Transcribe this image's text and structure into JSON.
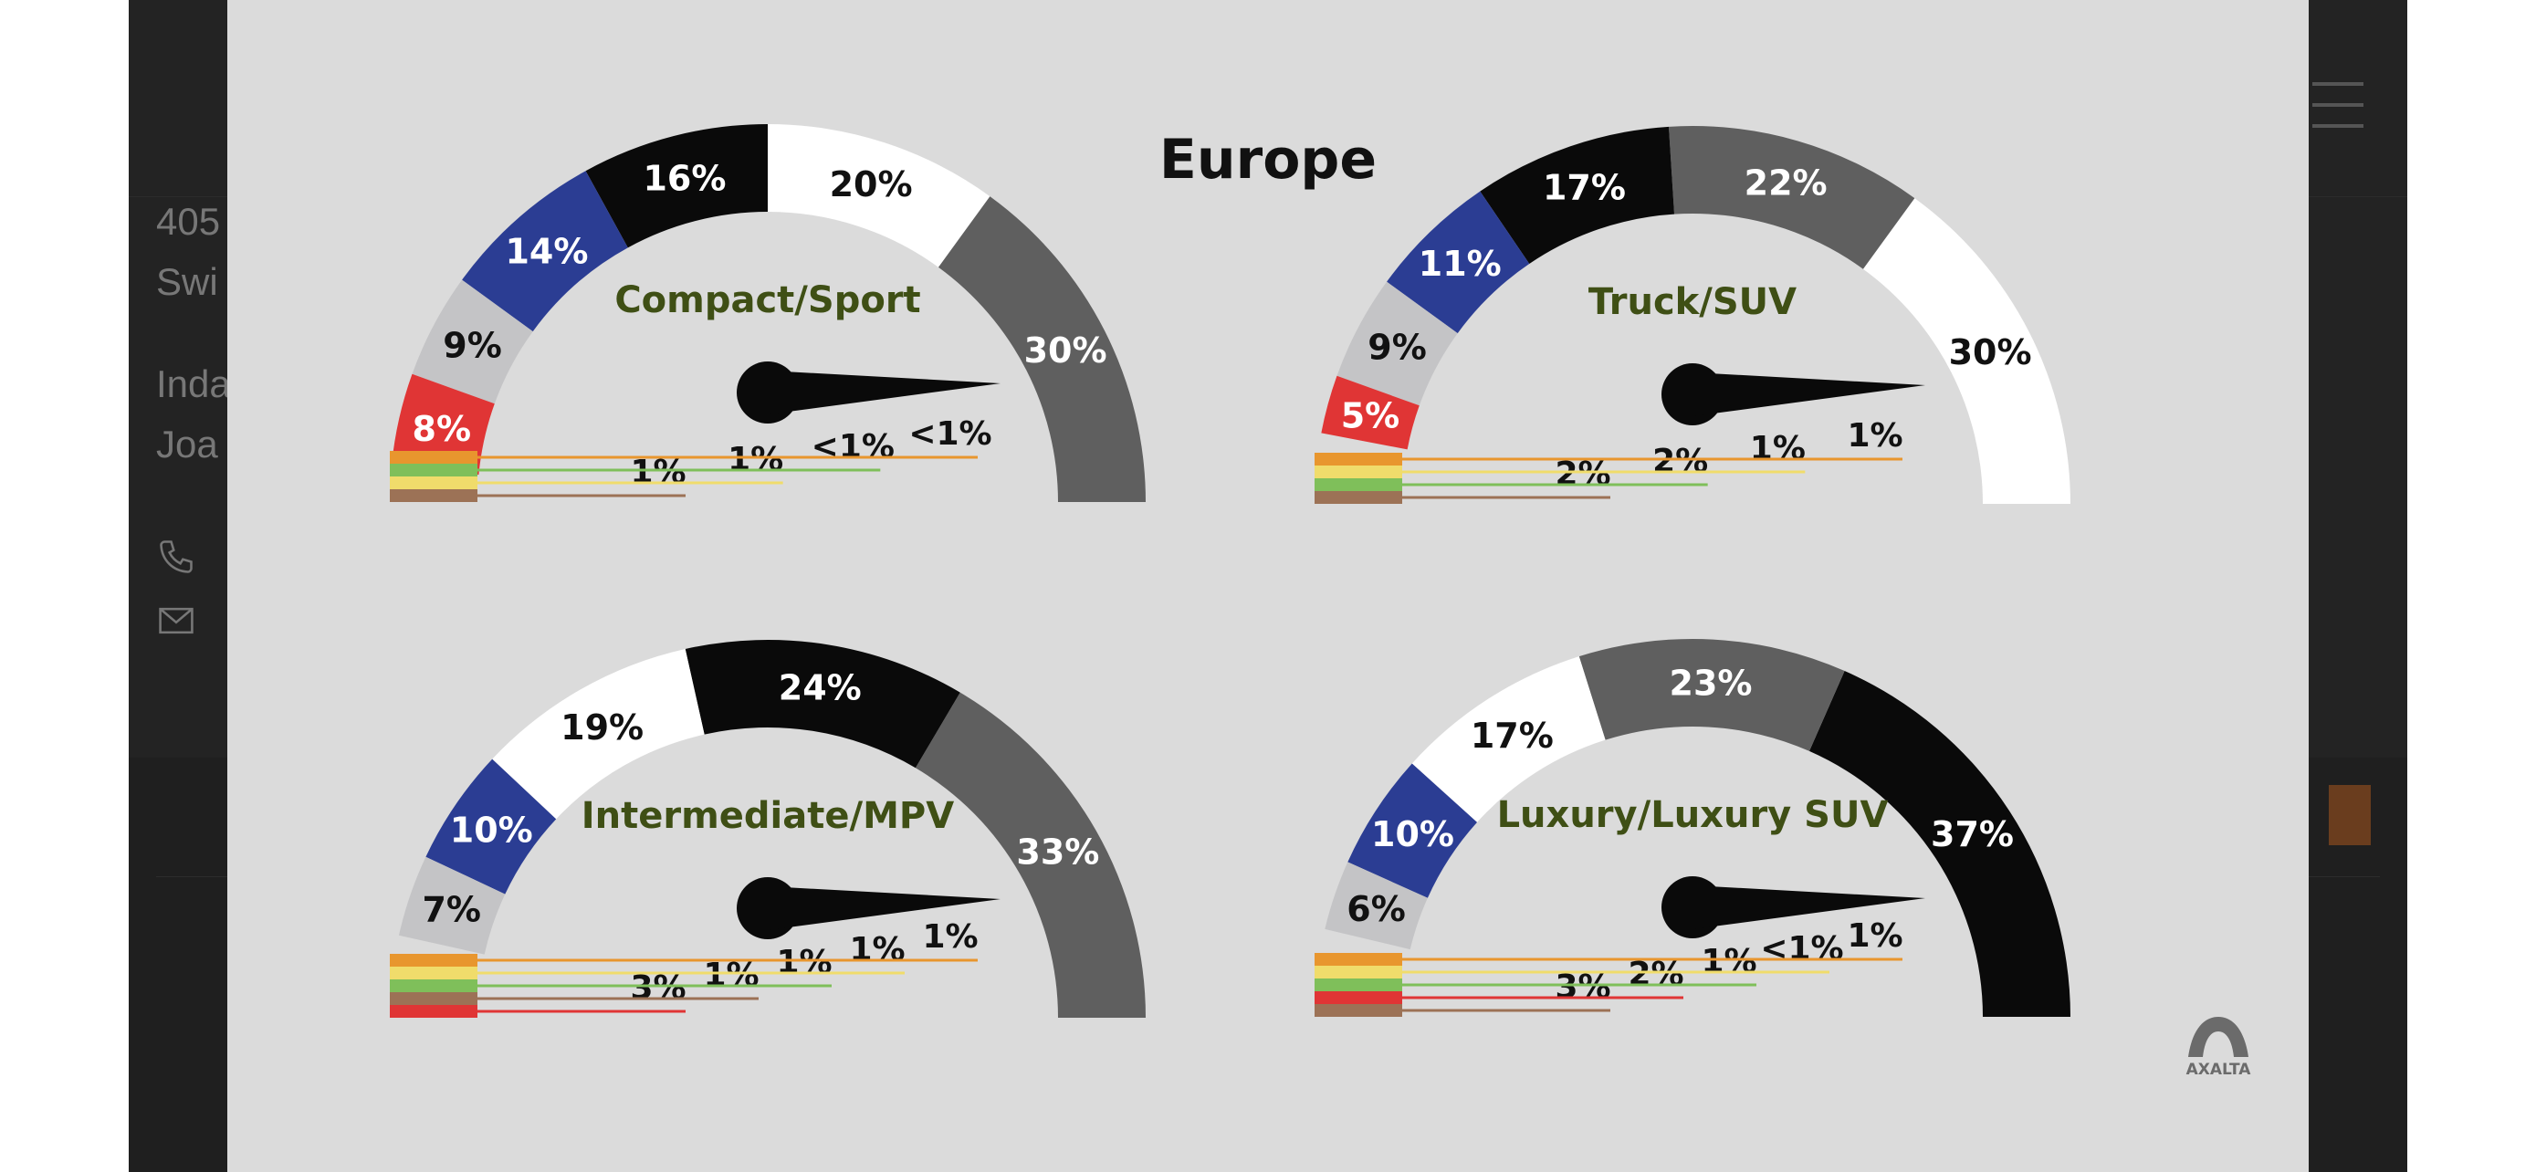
{
  "site": {
    "address_line1": "405",
    "address_line2": "Swi",
    "contact_line1": "Inda",
    "contact_line2": "Joa"
  },
  "logo": {
    "text": "AXALTA"
  },
  "colors": {
    "white": "#ffffff",
    "black": "#0a0a0a",
    "dark_gray": "#5f5f5f",
    "silver": "#c4c4c6",
    "blue": "#2b3d93",
    "red": "#e03535",
    "brown": "#9c7256",
    "green": "#7fbf5a",
    "yellow": "#f0dc6b",
    "orange": "#e8962e",
    "label_green": "#3f4f15"
  },
  "chart_data": {
    "type": "gauge",
    "title": "Europe",
    "charts": [
      {
        "name": "Compact/Sport",
        "segments": [
          {
            "color": "dark_gray",
            "value": 30,
            "label": "30%"
          },
          {
            "color": "white",
            "value": 20,
            "label": "20%"
          },
          {
            "color": "black",
            "value": 16,
            "label": "16%"
          },
          {
            "color": "blue",
            "value": 14,
            "label": "14%"
          },
          {
            "color": "silver",
            "value": 9,
            "label": "9%"
          },
          {
            "color": "red",
            "value": 8,
            "label": "8%"
          }
        ],
        "small": [
          {
            "color": "brown",
            "value": 1,
            "label": "1%"
          },
          {
            "color": "yellow",
            "value": 1,
            "label": "1%"
          },
          {
            "color": "green",
            "value": 0.5,
            "label": "<1%"
          },
          {
            "color": "orange",
            "value": 0.5,
            "label": "<1%"
          }
        ]
      },
      {
        "name": "Truck/SUV",
        "segments": [
          {
            "color": "white",
            "value": 30,
            "label": "30%"
          },
          {
            "color": "dark_gray",
            "value": 22,
            "label": "22%"
          },
          {
            "color": "black",
            "value": 17,
            "label": "17%"
          },
          {
            "color": "blue",
            "value": 11,
            "label": "11%"
          },
          {
            "color": "silver",
            "value": 9,
            "label": "9%"
          },
          {
            "color": "red",
            "value": 5,
            "label": "5%"
          }
        ],
        "small": [
          {
            "color": "brown",
            "value": 2,
            "label": "2%"
          },
          {
            "color": "green",
            "value": 2,
            "label": "2%"
          },
          {
            "color": "yellow",
            "value": 1,
            "label": "1%"
          },
          {
            "color": "orange",
            "value": 1,
            "label": "1%"
          }
        ]
      },
      {
        "name": "Intermediate/MPV",
        "segments": [
          {
            "color": "dark_gray",
            "value": 33,
            "label": "33%"
          },
          {
            "color": "black",
            "value": 24,
            "label": "24%"
          },
          {
            "color": "white",
            "value": 19,
            "label": "19%"
          },
          {
            "color": "blue",
            "value": 10,
            "label": "10%"
          },
          {
            "color": "silver",
            "value": 7,
            "label": "7%"
          }
        ],
        "small": [
          {
            "color": "red",
            "value": 3,
            "label": "3%"
          },
          {
            "color": "brown",
            "value": 1,
            "label": "1%"
          },
          {
            "color": "green",
            "value": 1,
            "label": "1%"
          },
          {
            "color": "yellow",
            "value": 1,
            "label": "1%"
          },
          {
            "color": "orange",
            "value": 1,
            "label": "1%"
          }
        ]
      },
      {
        "name": "Luxury/Luxury SUV",
        "segments": [
          {
            "color": "black",
            "value": 37,
            "label": "37%"
          },
          {
            "color": "dark_gray",
            "value": 23,
            "label": "23%"
          },
          {
            "color": "white",
            "value": 17,
            "label": "17%"
          },
          {
            "color": "blue",
            "value": 10,
            "label": "10%"
          },
          {
            "color": "silver",
            "value": 6,
            "label": "6%"
          }
        ],
        "small": [
          {
            "color": "brown",
            "value": 3,
            "label": "3%"
          },
          {
            "color": "red",
            "value": 2,
            "label": "2%"
          },
          {
            "color": "green",
            "value": 1,
            "label": "1%"
          },
          {
            "color": "yellow",
            "value": 0.5,
            "label": "<1%"
          },
          {
            "color": "orange",
            "value": 1,
            "label": "1%"
          }
        ]
      }
    ]
  }
}
